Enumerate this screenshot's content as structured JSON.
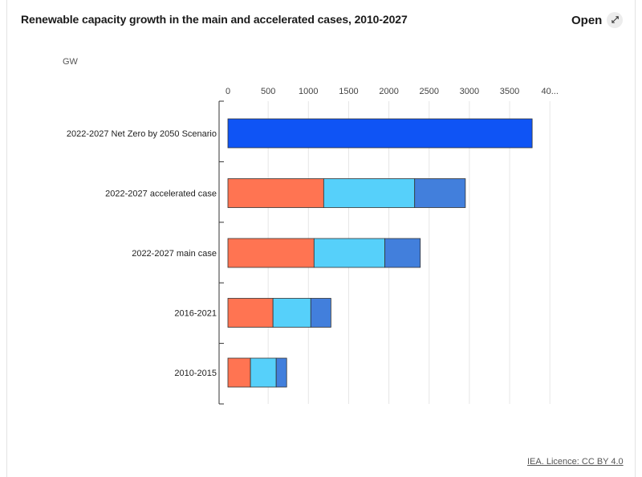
{
  "header": {
    "title": "Renewable capacity growth in the main and accelerated cases, 2010-2027",
    "open_label": "Open",
    "open_icon": "expand-icon"
  },
  "footer": {
    "licence": "IEA. Licence: CC BY 4.0"
  },
  "chart_data": {
    "type": "bar",
    "orientation": "horizontal",
    "stacked": true,
    "title": "Renewable capacity growth in the main and accelerated cases, 2010-2027",
    "unit": "GW",
    "categories": [
      "2022-2027 Net Zero by 2050 Scenario",
      "2022-2027 accelerated case",
      "2022-2027 main case",
      "2016-2021",
      "2010-2015"
    ],
    "series": [
      {
        "values": [
          0,
          1190,
          1070,
          560,
          280
        ],
        "color": "#ff7452"
      },
      {
        "values": [
          0,
          1130,
          880,
          470,
          320
        ],
        "color": "#56d0fa"
      },
      {
        "values": [
          0,
          630,
          440,
          250,
          130
        ],
        "color": "#427fdc"
      },
      {
        "values": [
          3780,
          0,
          0,
          0,
          0
        ],
        "color": "#0f54f5"
      }
    ],
    "xticks": [
      "0",
      "500",
      "1000",
      "1500",
      "2000",
      "2500",
      "3000",
      "3500",
      "40..."
    ],
    "xlim": [
      0,
      4000
    ],
    "grid": true
  }
}
